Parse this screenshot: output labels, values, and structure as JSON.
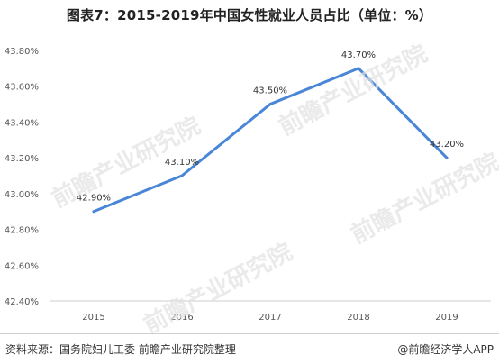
{
  "title": "图表7：2015-2019年中国女性就业人员占比（单位：%）",
  "chart_data": {
    "type": "line",
    "title": "图表7：2015-2019年中国女性就业人员占比（单位：%）",
    "categories": [
      "2015",
      "2016",
      "2017",
      "2018",
      "2019"
    ],
    "series": [
      {
        "values": [
          42.9,
          43.1,
          43.5,
          43.7,
          43.2
        ],
        "labels": [
          "42.90%",
          "43.10%",
          "43.50%",
          "43.70%",
          "43.20%"
        ]
      }
    ],
    "ylim": [
      42.4,
      43.8
    ],
    "yticks": [
      42.4,
      42.6,
      42.8,
      43.0,
      43.2,
      43.4,
      43.6,
      43.8
    ],
    "ytick_labels": [
      "42.40%",
      "42.60%",
      "42.80%",
      "43.00%",
      "43.20%",
      "43.40%",
      "43.60%",
      "43.80%"
    ],
    "grid": false,
    "line_color": "#4a86d8"
  },
  "footer": {
    "source": "资料来源：国务院妇儿工委  前瞻产业研究院整理",
    "brand": "@前瞻经济学人APP"
  },
  "watermark": "前瞻产业研究院"
}
